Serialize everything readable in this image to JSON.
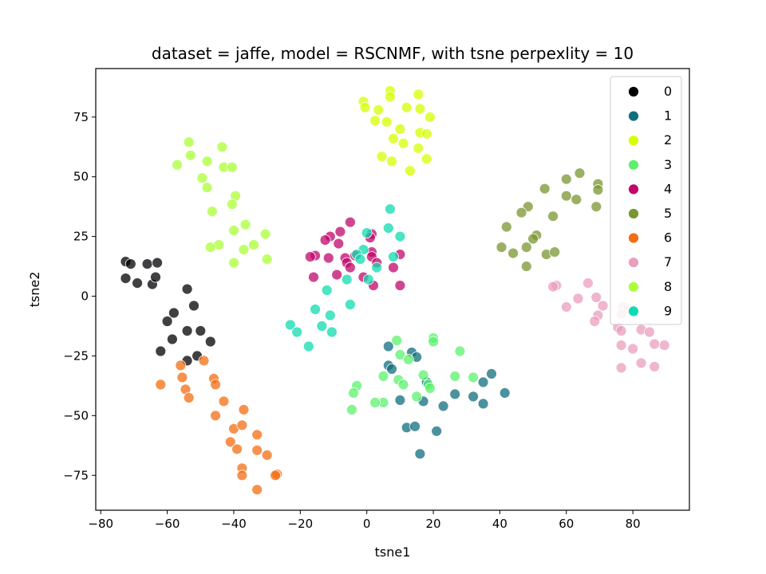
{
  "chart_data": {
    "type": "scatter",
    "title": "dataset = jaffe, model = RSCNMF, with tsne perpexlity = 10",
    "xlabel": "tsne1",
    "ylabel": "tsne2",
    "xlim": [
      -81.5,
      97
    ],
    "ylim": [
      -89.6,
      95.3
    ],
    "xticks": [
      -80,
      -60,
      -40,
      -20,
      0,
      20,
      40,
      60,
      80
    ],
    "yticks": [
      -75,
      -50,
      -25,
      0,
      25,
      50,
      75
    ],
    "grid": false,
    "legend_position": "top-right",
    "series": [
      {
        "name": "0",
        "color": "#000004",
        "points": [
          [
            -72.5,
            14.5
          ],
          [
            -71,
            13.5
          ],
          [
            -66,
            13.5
          ],
          [
            -63,
            14
          ],
          [
            -72.5,
            7.5
          ],
          [
            -69,
            5.5
          ],
          [
            -64.5,
            5
          ],
          [
            -63.5,
            8
          ],
          [
            -54,
            3
          ],
          [
            -52,
            -4
          ],
          [
            -58,
            -7
          ],
          [
            -60,
            -10.5
          ],
          [
            -54,
            -14.5
          ],
          [
            -50,
            -14.5
          ],
          [
            -47,
            -19
          ],
          [
            -58.5,
            -18
          ],
          [
            -62,
            -23
          ],
          [
            -51,
            -25
          ],
          [
            -54,
            -27
          ]
        ]
      },
      {
        "name": "1",
        "color": "#106e7d",
        "points": [
          [
            6.5,
            -21
          ],
          [
            13.5,
            -23.5
          ],
          [
            15,
            -25.5
          ],
          [
            6.5,
            -29
          ],
          [
            7.5,
            -30.5
          ],
          [
            18,
            -36
          ],
          [
            26.5,
            -41
          ],
          [
            32,
            -42
          ],
          [
            35,
            -45
          ],
          [
            37.5,
            -32.5
          ],
          [
            35,
            -36
          ],
          [
            41.5,
            -40.5
          ],
          [
            10,
            -43.5
          ],
          [
            17,
            -44
          ],
          [
            23,
            -46
          ],
          [
            12,
            -55
          ],
          [
            14.5,
            -54.5
          ],
          [
            21,
            -56.5
          ],
          [
            16,
            -66
          ]
        ]
      },
      {
        "name": "2",
        "color": "#d7ff00",
        "points": [
          [
            7,
            86
          ],
          [
            15.5,
            84.5
          ],
          [
            7,
            83.5
          ],
          [
            -1,
            81.5
          ],
          [
            -0.5,
            79
          ],
          [
            3.5,
            78
          ],
          [
            12,
            79
          ],
          [
            16,
            78.5
          ],
          [
            19,
            75
          ],
          [
            2.5,
            73.5
          ],
          [
            6,
            73
          ],
          [
            10,
            70
          ],
          [
            16,
            68.5
          ],
          [
            18,
            68
          ],
          [
            8,
            66
          ],
          [
            11,
            64
          ],
          [
            15.5,
            62
          ],
          [
            4.5,
            58.5
          ],
          [
            7.5,
            56.5
          ],
          [
            18,
            57.5
          ],
          [
            13,
            52.5
          ]
        ]
      },
      {
        "name": "3",
        "color": "#5bf16c",
        "points": [
          [
            9,
            -18.5
          ],
          [
            20,
            -17.5
          ],
          [
            20,
            -19
          ],
          [
            28,
            -23
          ],
          [
            10,
            -24.5
          ],
          [
            12.5,
            -26.5
          ],
          [
            17,
            -33
          ],
          [
            5,
            -33.5
          ],
          [
            26.5,
            -33.5
          ],
          [
            32,
            -34
          ],
          [
            9.5,
            -35
          ],
          [
            11,
            -37
          ],
          [
            18.5,
            -37
          ],
          [
            19,
            -38.5
          ],
          [
            -3,
            -37.5
          ],
          [
            -4,
            -40.5
          ],
          [
            15,
            -42
          ],
          [
            5,
            -44.5
          ],
          [
            2.5,
            -44.5
          ],
          [
            -4.5,
            -47.5
          ]
        ]
      },
      {
        "name": "4",
        "color": "#c0076b",
        "points": [
          [
            -5,
            31
          ],
          [
            -8,
            27
          ],
          [
            -11,
            25
          ],
          [
            -12.5,
            23.5
          ],
          [
            -8.5,
            22
          ],
          [
            1.5,
            26
          ],
          [
            1,
            24.5
          ],
          [
            -15.5,
            17
          ],
          [
            -17,
            16.5
          ],
          [
            -11.5,
            16
          ],
          [
            -3.5,
            17
          ],
          [
            -6.5,
            16
          ],
          [
            1.5,
            18.5
          ],
          [
            1.5,
            16.5
          ],
          [
            10,
            17.5
          ],
          [
            -6,
            14
          ],
          [
            3,
            14
          ],
          [
            -5,
            12
          ],
          [
            8,
            12
          ],
          [
            -16,
            8
          ],
          [
            -9,
            9
          ],
          [
            -1,
            8
          ],
          [
            2,
            4.5
          ],
          [
            10,
            4.5
          ]
        ]
      },
      {
        "name": "5",
        "color": "#7a9630",
        "points": [
          [
            64,
            51.5
          ],
          [
            60,
            49
          ],
          [
            69.5,
            47
          ],
          [
            69.5,
            44.5
          ],
          [
            53.5,
            45
          ],
          [
            60,
            42
          ],
          [
            63,
            40.5
          ],
          [
            48.5,
            37.5
          ],
          [
            46.5,
            35
          ],
          [
            56,
            33.5
          ],
          [
            69,
            37.5
          ],
          [
            42,
            29
          ],
          [
            51,
            25.5
          ],
          [
            50,
            24
          ],
          [
            40.5,
            20.5
          ],
          [
            44,
            18
          ],
          [
            48,
            20.5
          ],
          [
            54,
            17.5
          ],
          [
            56.5,
            18.5
          ],
          [
            48,
            12.5
          ]
        ]
      },
      {
        "name": "6",
        "color": "#f36e13",
        "points": [
          [
            -56,
            -29
          ],
          [
            -49,
            -27
          ],
          [
            -46,
            -34.5
          ],
          [
            -55.5,
            -34
          ],
          [
            -45.5,
            -37
          ],
          [
            -62,
            -37
          ],
          [
            -54.5,
            -39
          ],
          [
            -53.5,
            -42.5
          ],
          [
            -43,
            -44
          ],
          [
            -37,
            -47.5
          ],
          [
            -45.5,
            -50
          ],
          [
            -40,
            -55.5
          ],
          [
            -37.5,
            -54
          ],
          [
            -33,
            -58
          ],
          [
            -41,
            -61
          ],
          [
            -39,
            -64
          ],
          [
            -33,
            -64.5
          ],
          [
            -30,
            -66.5
          ],
          [
            -37.5,
            -72
          ],
          [
            -37.5,
            -75
          ],
          [
            -27,
            -74.5
          ],
          [
            -27.5,
            -75
          ],
          [
            -33,
            -81
          ]
        ]
      },
      {
        "name": "7",
        "color": "#e99ebd",
        "points": [
          [
            66.5,
            5.5
          ],
          [
            57,
            4.5
          ],
          [
            56,
            4
          ],
          [
            63.5,
            -1
          ],
          [
            69,
            -0.5
          ],
          [
            71,
            -4
          ],
          [
            77,
            -4.5
          ],
          [
            60,
            -4.5
          ],
          [
            78.5,
            -5.5
          ],
          [
            76.5,
            -7.5
          ],
          [
            69.5,
            -8
          ],
          [
            68.5,
            -10.5
          ],
          [
            75.5,
            -13
          ],
          [
            76.5,
            -14.5
          ],
          [
            82.5,
            -14
          ],
          [
            85,
            -15
          ],
          [
            76.5,
            -20.5
          ],
          [
            80,
            -22
          ],
          [
            86.5,
            -20
          ],
          [
            89.5,
            -20.5
          ],
          [
            82.5,
            -28
          ],
          [
            86.5,
            -29.5
          ],
          [
            76.5,
            -30
          ]
        ]
      },
      {
        "name": "8",
        "color": "#aaff36",
        "points": [
          [
            -53.5,
            64.5
          ],
          [
            -43.5,
            62.5
          ],
          [
            -53,
            59
          ],
          [
            -57,
            55
          ],
          [
            -48,
            56.5
          ],
          [
            -43,
            54
          ],
          [
            -40.5,
            54
          ],
          [
            -49.5,
            49.5
          ],
          [
            -48,
            45.5
          ],
          [
            -39.5,
            42
          ],
          [
            -40.5,
            38.5
          ],
          [
            -46.5,
            35.5
          ],
          [
            -36.5,
            30
          ],
          [
            -40,
            27.5
          ],
          [
            -30.5,
            26
          ],
          [
            -44.5,
            21.5
          ],
          [
            -47,
            20.5
          ],
          [
            -34,
            21.5
          ],
          [
            -37,
            19.5
          ],
          [
            -30,
            15.5
          ],
          [
            -40,
            14
          ]
        ]
      },
      {
        "name": "9",
        "color": "#0fdbb0",
        "points": [
          [
            7,
            36.5
          ],
          [
            6.5,
            28.5
          ],
          [
            0,
            26.5
          ],
          [
            10,
            25
          ],
          [
            -1,
            19.5
          ],
          [
            -3,
            17.5
          ],
          [
            8,
            16.5
          ],
          [
            -2,
            15.5
          ],
          [
            3,
            12
          ],
          [
            0.5,
            7
          ],
          [
            -6,
            7
          ],
          [
            -12,
            2.5
          ],
          [
            -15.5,
            -5.5
          ],
          [
            -5,
            -3.5
          ],
          [
            -11,
            -8
          ],
          [
            -23,
            -12
          ],
          [
            -13.5,
            -12.5
          ],
          [
            -21,
            -15
          ],
          [
            -10.5,
            -15
          ],
          [
            -17.5,
            -21
          ]
        ]
      }
    ]
  }
}
